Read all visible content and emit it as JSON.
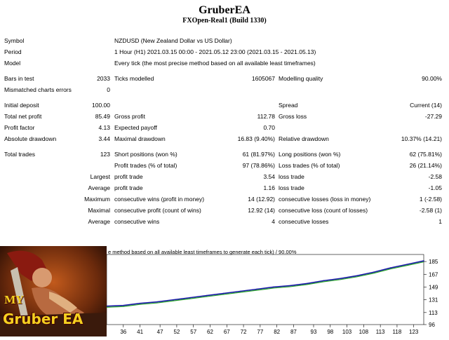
{
  "header": {
    "title": "GruberEA",
    "subtitle": "FXOpen-Real1 (Build 1330)"
  },
  "info": {
    "symbol_label": "Symbol",
    "symbol_value": "NZDUSD (New Zealand Dollar vs US Dollar)",
    "period_label": "Period",
    "period_value": "1 Hour (H1) 2021.03.15 00:00 - 2021.05.12 23:00 (2021.03.15 - 2021.05.13)",
    "model_label": "Model",
    "model_value": "Every tick (the most precise method based on all available least timeframes)"
  },
  "stats": {
    "bars_label": "Bars in test",
    "bars_value": "2033",
    "ticks_label": "Ticks modelled",
    "ticks_value": "1605067",
    "quality_label": "Modelling quality",
    "quality_value": "90.00%",
    "mismatch_label": "Mismatched charts errors",
    "mismatch_value": "0",
    "deposit_label": "Initial deposit",
    "deposit_value": "100.00",
    "spread_label": "Spread",
    "spread_value": "Current (14)",
    "netprofit_label": "Total net profit",
    "netprofit_value": "85.49",
    "grossprofit_label": "Gross profit",
    "grossprofit_value": "112.78",
    "grossloss_label": "Gross loss",
    "grossloss_value": "-27.29",
    "pf_label": "Profit factor",
    "pf_value": "4.13",
    "payoff_label": "Expected payoff",
    "payoff_value": "0.70",
    "absdd_label": "Absolute drawdown",
    "absdd_value": "3.44",
    "maxdd_label": "Maximal drawdown",
    "maxdd_value": "16.83 (9.40%)",
    "reldd_label": "Relative drawdown",
    "reldd_value": "10.37% (14.21)",
    "trades_label": "Total trades",
    "trades_value": "123",
    "short_label": "Short positions (won %)",
    "short_value": "61 (81.97%)",
    "long_label": "Long positions (won %)",
    "long_value": "62 (75.81%)",
    "profittrades_label": "Profit trades (% of total)",
    "profittrades_value": "97 (78.86%)",
    "losstrades_label": "Loss trades (% of total)",
    "losstrades_value": "26 (21.14%)",
    "largest_label": "Largest",
    "largest_profit_label": "profit trade",
    "largest_profit_value": "3.54",
    "largest_loss_label": "loss trade",
    "largest_loss_value": "-2.58",
    "average_label": "Average",
    "average_profit_label": "profit trade",
    "average_profit_value": "1.16",
    "average_loss_label": "loss trade",
    "average_loss_value": "-1.05",
    "maximum_label": "Maximum",
    "max_cwins_label": "consecutive wins (profit in money)",
    "max_cwins_value": "14 (12.92)",
    "max_closses_label": "consecutive losses (loss in money)",
    "max_closses_value": "1 (-2.58)",
    "maximal_label": "Maximal",
    "maximal_cprofit_label": "consecutive profit (count of wins)",
    "maximal_cprofit_value": "12.92 (14)",
    "maximal_closs_label": "consecutive loss (count of losses)",
    "maximal_closs_value": "-2.58 (1)",
    "avg2_label": "Average",
    "avg_cwins_label": "consecutive wins",
    "avg_cwins_value": "4",
    "avg_closses_label": "consecutive losses",
    "avg_closses_value": "1"
  },
  "poster": {
    "line1": "MY",
    "line2": "Gruber EA"
  },
  "chart_data": {
    "type": "line",
    "title": "e method based on all available least timeframes to generate each tick) / 90.00%",
    "xlabel": "",
    "ylabel": "",
    "x_ticks": [
      36,
      41,
      47,
      52,
      57,
      62,
      67,
      72,
      77,
      82,
      87,
      93,
      98,
      103,
      108,
      113,
      118,
      123
    ],
    "y_ticks": [
      96,
      113,
      131,
      149,
      167,
      185
    ],
    "xlim": [
      31,
      126
    ],
    "ylim": [
      96,
      193
    ],
    "grid": false,
    "colors": {
      "balance": "#1a1aa8",
      "equity": "#22a022"
    },
    "series": [
      {
        "name": "",
        "x": [
          31,
          36,
          41,
          46,
          51,
          56,
          61,
          66,
          71,
          76,
          81,
          86,
          91,
          96,
          101,
          106,
          111,
          116,
          121,
          126
        ],
        "values": [
          122,
          123,
          126,
          128,
          131,
          134,
          137,
          140,
          143,
          146,
          149,
          151,
          154,
          158,
          161,
          165,
          170,
          176,
          181,
          186
        ]
      }
    ]
  }
}
